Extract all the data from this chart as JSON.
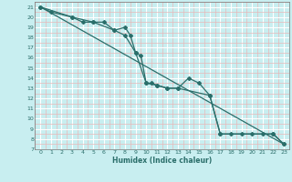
{
  "xlabel": "Humidex (Indice chaleur)",
  "bg_color": "#c8eef0",
  "line_color": "#2a6e6a",
  "major_grid_color": "#ffffff",
  "minor_grid_color": "#e8b8b8",
  "xlim": [
    -0.5,
    23.5
  ],
  "ylim": [
    7,
    21.5
  ],
  "xticks": [
    0,
    1,
    2,
    3,
    4,
    5,
    6,
    7,
    8,
    9,
    10,
    11,
    12,
    13,
    14,
    15,
    16,
    17,
    18,
    19,
    20,
    21,
    22,
    23
  ],
  "yticks": [
    7,
    8,
    9,
    10,
    11,
    12,
    13,
    14,
    15,
    16,
    17,
    18,
    19,
    20,
    21
  ],
  "series1": [
    [
      0,
      21
    ],
    [
      1,
      20.5
    ],
    [
      3,
      20
    ],
    [
      4,
      19.5
    ],
    [
      5,
      19.5
    ],
    [
      6,
      19.5
    ],
    [
      7,
      18.7
    ],
    [
      8,
      19
    ],
    [
      8.5,
      18.2
    ],
    [
      9,
      16.5
    ],
    [
      9.5,
      16.2
    ],
    [
      10,
      13.5
    ],
    [
      10.5,
      13.5
    ],
    [
      11,
      13.3
    ],
    [
      12,
      13
    ],
    [
      13,
      13
    ],
    [
      14,
      14
    ],
    [
      15,
      13.5
    ],
    [
      16,
      12.3
    ],
    [
      17,
      8.5
    ],
    [
      18,
      8.5
    ],
    [
      19,
      8.5
    ],
    [
      20,
      8.5
    ],
    [
      21,
      8.5
    ],
    [
      22,
      8.5
    ],
    [
      23,
      7.5
    ]
  ],
  "series2": [
    [
      0,
      21
    ],
    [
      3,
      20
    ],
    [
      5,
      19.5
    ],
    [
      7,
      18.7
    ],
    [
      8,
      18.2
    ],
    [
      9,
      16.5
    ],
    [
      10,
      13.5
    ],
    [
      11,
      13.3
    ],
    [
      12,
      13
    ],
    [
      13,
      13
    ],
    [
      16,
      12.3
    ],
    [
      17,
      8.5
    ],
    [
      22,
      8.5
    ],
    [
      23,
      7.5
    ]
  ],
  "series3": [
    [
      0,
      21
    ],
    [
      23,
      7.5
    ]
  ]
}
